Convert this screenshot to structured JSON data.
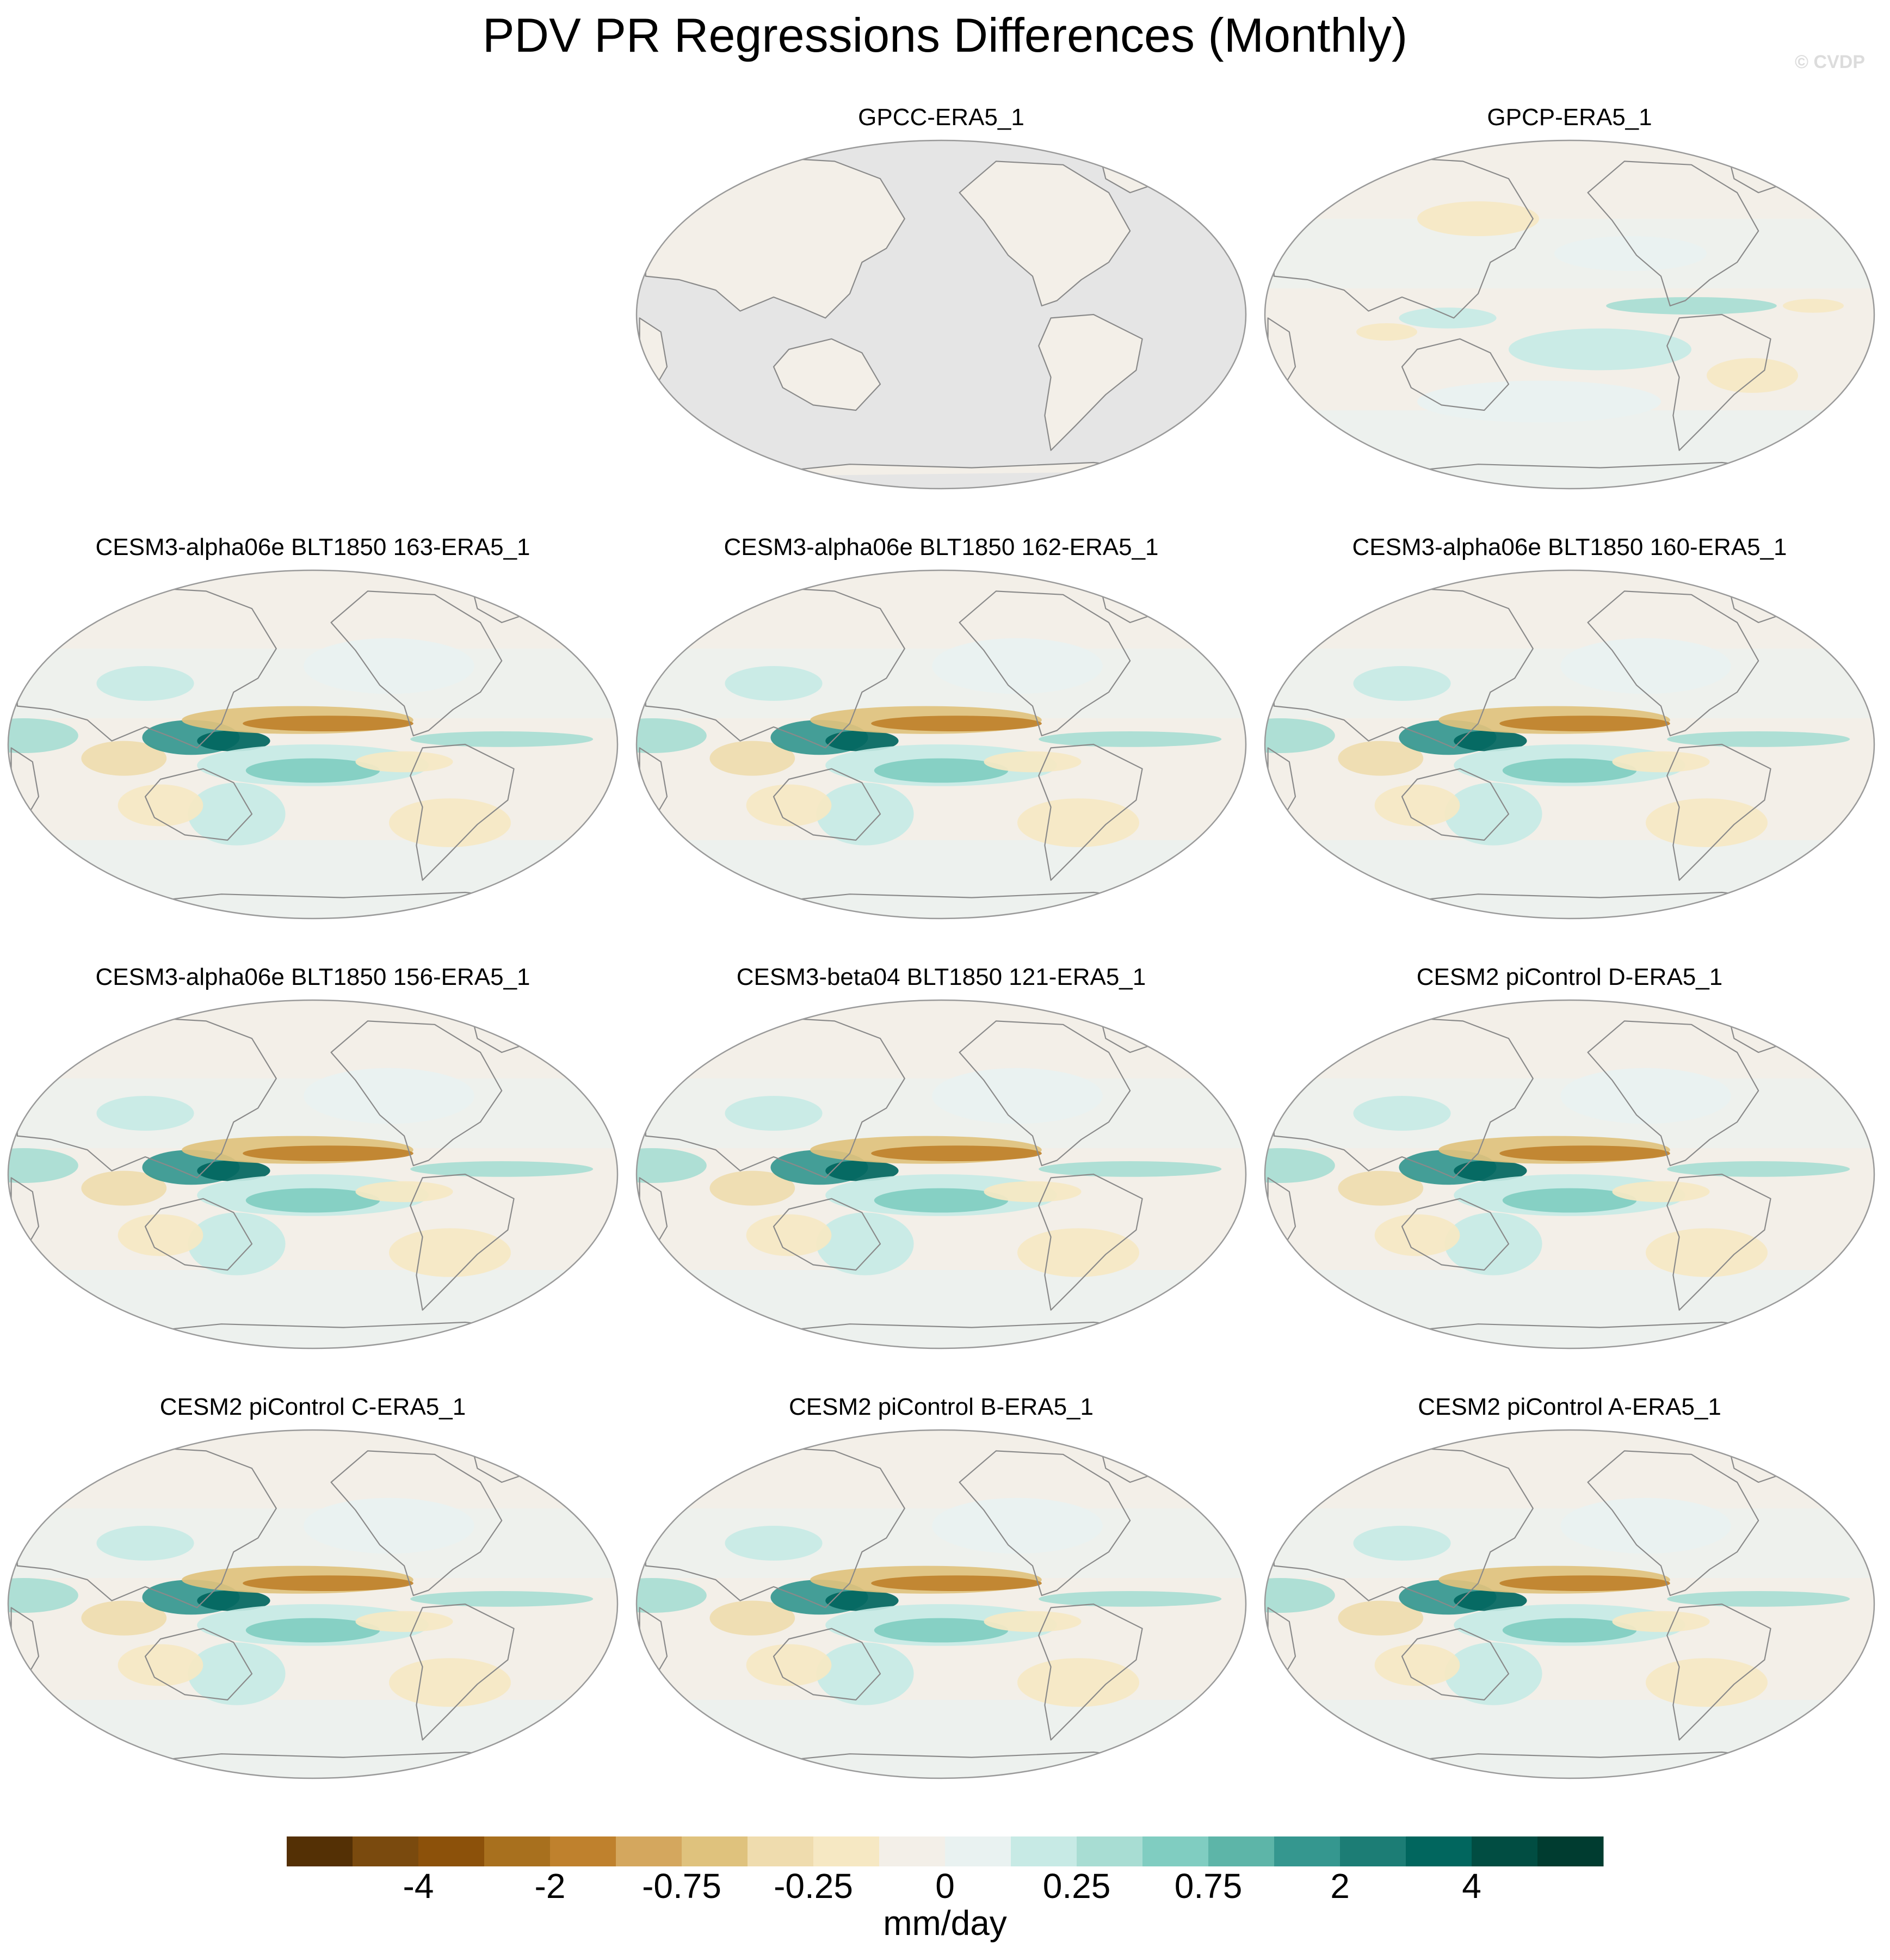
{
  "title": "PDV PR Regressions Differences (Monthly)",
  "watermark": "© CVDP",
  "panels": [
    {
      "title": "GPCC-ERA5_1",
      "ocean_masked": true,
      "pattern": "gpcc"
    },
    {
      "title": "GPCP-ERA5_1",
      "ocean_masked": false,
      "pattern": "gpcp"
    },
    {
      "title": "CESM3-alpha06e BLT1850 163-ERA5_1",
      "ocean_masked": false,
      "pattern": "model"
    },
    {
      "title": "CESM3-alpha06e BLT1850 162-ERA5_1",
      "ocean_masked": false,
      "pattern": "model"
    },
    {
      "title": "CESM3-alpha06e BLT1850 160-ERA5_1",
      "ocean_masked": false,
      "pattern": "model"
    },
    {
      "title": "CESM3-alpha06e BLT1850 156-ERA5_1",
      "ocean_masked": false,
      "pattern": "model"
    },
    {
      "title": "CESM3-beta04 BLT1850 121-ERA5_1",
      "ocean_masked": false,
      "pattern": "model"
    },
    {
      "title": "CESM2 piControl D-ERA5_1",
      "ocean_masked": false,
      "pattern": "model"
    },
    {
      "title": "CESM2 piControl C-ERA5_1",
      "ocean_masked": false,
      "pattern": "model"
    },
    {
      "title": "CESM2 piControl B-ERA5_1",
      "ocean_masked": false,
      "pattern": "model"
    },
    {
      "title": "CESM2 piControl A-ERA5_1",
      "ocean_masked": false,
      "pattern": "model"
    }
  ],
  "colorbar": {
    "unit": "mm/day",
    "colors": [
      "#543005",
      "#7a4a0e",
      "#8c510a",
      "#a8701e",
      "#bf812d",
      "#d4a75e",
      "#dfc27d",
      "#efdcae",
      "#f6e8c3",
      "#f3efe8",
      "#e9f2f1",
      "#c7eae5",
      "#a8ddd3",
      "#80cdc1",
      "#5db5a8",
      "#35978f",
      "#1c7d75",
      "#01665e",
      "#014d42",
      "#003c30"
    ],
    "tick_labels": [
      "-4",
      "-2",
      "-0.75",
      "-0.25",
      "0",
      "0.25",
      "0.75",
      "2",
      "4"
    ]
  },
  "palette": {
    "land_mask": "#e5e5e5",
    "coast": "#8a8a8a",
    "map_border": "#9a9a9a"
  }
}
